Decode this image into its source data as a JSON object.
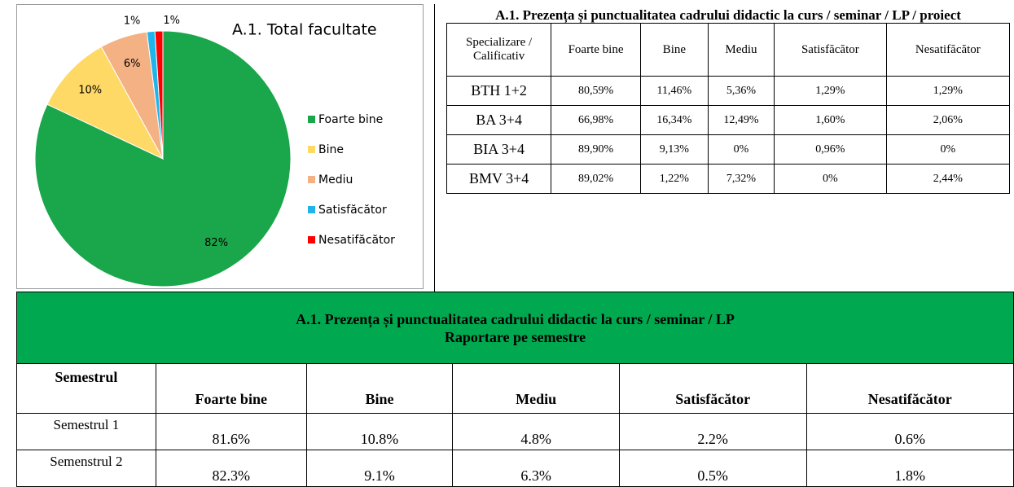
{
  "chart_data": {
    "type": "pie",
    "title": "A.1. Total facultate",
    "categories": [
      "Foarte bine",
      "Bine",
      "Mediu",
      "Satisfăcător",
      "Nesatifăcător"
    ],
    "values": [
      82,
      10,
      6,
      1,
      1
    ],
    "value_labels": [
      "82%",
      "10%",
      "6%",
      "1%",
      "1%"
    ],
    "colors": [
      "#1aa64a",
      "#ffd966",
      "#f4b183",
      "#1fb5ea",
      "#ff0000"
    ],
    "legend": "right"
  },
  "table1": {
    "title": "A.1. Prezența și punctualitatea cadrului didactic la curs / seminar / LP / proiect",
    "header": [
      "Specializare / Calificativ",
      "Foarte bine",
      "Bine",
      "Mediu",
      "Satisfăcător",
      "Nesatifăcător"
    ],
    "rows": [
      [
        "BTH  1+2",
        "80,59%",
        "11,46%",
        "5,36%",
        "1,29%",
        "1,29%"
      ],
      [
        "BA  3+4",
        "66,98%",
        "16,34%",
        "12,49%",
        "1,60%",
        "2,06%"
      ],
      [
        "BIA  3+4",
        "89,90%",
        "9,13%",
        "0%",
        "0,96%",
        "0%"
      ],
      [
        "BMV  3+4",
        "89,02%",
        "1,22%",
        "7,32%",
        "0%",
        "2,44%"
      ]
    ]
  },
  "table2": {
    "title": "A.1. Prezența și punctualitatea cadrului didactic la curs / seminar / LP",
    "subtitle": "Raportare pe semestre",
    "header": [
      "Semestrul",
      "Foarte bine",
      "Bine",
      "Mediu",
      "Satisfăcător",
      "Nesatifăcător"
    ],
    "rows": [
      [
        "Semestrul 1",
        "81.6%",
        "10.8%",
        "4.8%",
        "2.2%",
        "0.6%"
      ],
      [
        "Semenstrul 2",
        "82.3%",
        "9.1%",
        "6.3%",
        "0.5%",
        "1.8%"
      ]
    ]
  }
}
